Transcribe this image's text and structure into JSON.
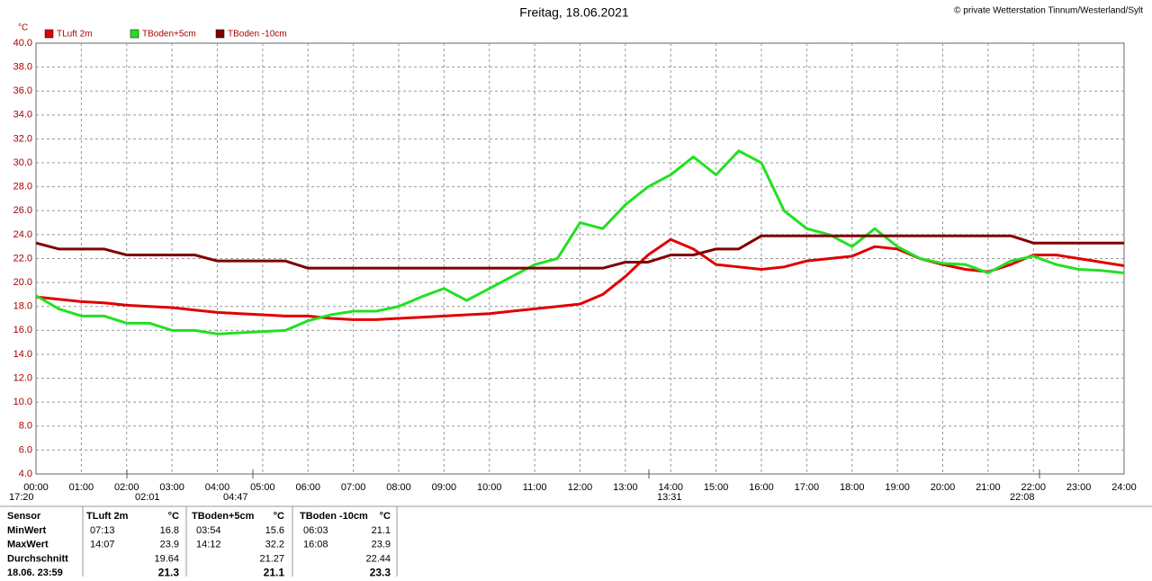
{
  "chart_data": {
    "type": "line",
    "title": "Freitag, 18.06.2021",
    "credit": "© private Wetterstation Tinnum/Westerland/Sylt",
    "y_label": "°C",
    "x": [
      0,
      0.5,
      1,
      1.5,
      2,
      2.5,
      3,
      3.5,
      4,
      4.5,
      5,
      5.5,
      6,
      6.5,
      7,
      7.5,
      8,
      8.5,
      9,
      9.5,
      10,
      10.5,
      11,
      11.5,
      12,
      12.5,
      13,
      13.5,
      14,
      14.5,
      15,
      15.5,
      16,
      16.5,
      17,
      17.5,
      18,
      18.5,
      19,
      19.5,
      20,
      20.5,
      21,
      21.5,
      22,
      22.5,
      23,
      23.5,
      24
    ],
    "series": [
      {
        "name": "TLuft 2m",
        "color": "#e00000",
        "values": [
          18.8,
          18.6,
          18.4,
          18.3,
          18.1,
          18.0,
          17.9,
          17.7,
          17.5,
          17.4,
          17.3,
          17.2,
          17.2,
          17.0,
          16.9,
          16.9,
          17.0,
          17.1,
          17.2,
          17.3,
          17.4,
          17.6,
          17.8,
          18.0,
          18.2,
          19.0,
          20.5,
          22.3,
          23.6,
          22.8,
          21.5,
          21.3,
          21.1,
          21.3,
          21.8,
          22.0,
          22.2,
          23.0,
          22.8,
          22.0,
          21.5,
          21.1,
          20.9,
          21.5,
          22.3,
          22.3,
          22.0,
          21.7,
          21.4
        ]
      },
      {
        "name": "TBoden+5cm",
        "color": "#22e022",
        "values": [
          18.9,
          17.8,
          17.2,
          17.2,
          16.6,
          16.6,
          16.0,
          16.0,
          15.7,
          15.8,
          15.9,
          16.0,
          16.8,
          17.3,
          17.6,
          17.6,
          18.0,
          18.8,
          19.5,
          18.5,
          19.5,
          20.5,
          21.5,
          22.0,
          25.0,
          24.5,
          26.5,
          28.0,
          29.0,
          30.5,
          29.0,
          31.0,
          30.0,
          26.0,
          24.5,
          24.0,
          23.0,
          24.5,
          23.0,
          22.0,
          21.6,
          21.5,
          20.8,
          21.8,
          22.2,
          21.5,
          21.1,
          21.0,
          20.8
        ]
      },
      {
        "name": "TBoden -10cm",
        "color": "#800000",
        "values": [
          23.3,
          22.8,
          22.8,
          22.8,
          22.3,
          22.3,
          22.3,
          22.3,
          21.8,
          21.8,
          21.8,
          21.8,
          21.2,
          21.2,
          21.2,
          21.2,
          21.2,
          21.2,
          21.2,
          21.2,
          21.2,
          21.2,
          21.2,
          21.2,
          21.2,
          21.2,
          21.7,
          21.7,
          22.3,
          22.3,
          22.8,
          22.8,
          23.9,
          23.9,
          23.9,
          23.9,
          23.9,
          23.9,
          23.9,
          23.9,
          23.9,
          23.9,
          23.9,
          23.9,
          23.3,
          23.3,
          23.3,
          23.3,
          23.3
        ]
      }
    ],
    "xlim": [
      0,
      24
    ],
    "xticks": [
      {
        "value": 0,
        "label": "00:00"
      },
      {
        "value": 1,
        "label": "01:00"
      },
      {
        "value": 2,
        "label": "02:00"
      },
      {
        "value": 3,
        "label": "03:00"
      },
      {
        "value": 4,
        "label": "04:00"
      },
      {
        "value": 5,
        "label": "05:00"
      },
      {
        "value": 6,
        "label": "06:00"
      },
      {
        "value": 7,
        "label": "07:00"
      },
      {
        "value": 8,
        "label": "08:00"
      },
      {
        "value": 9,
        "label": "09:00"
      },
      {
        "value": 10,
        "label": "10:00"
      },
      {
        "value": 11,
        "label": "11:00"
      },
      {
        "value": 12,
        "label": "12:00"
      },
      {
        "value": 13,
        "label": "13:00"
      },
      {
        "value": 14,
        "label": "14:00"
      },
      {
        "value": 15,
        "label": "15:00"
      },
      {
        "value": 16,
        "label": "16:00"
      },
      {
        "value": 17,
        "label": "17:00"
      },
      {
        "value": 18,
        "label": "18:00"
      },
      {
        "value": 19,
        "label": "19:00"
      },
      {
        "value": 20,
        "label": "20:00"
      },
      {
        "value": 21,
        "label": "21:00"
      },
      {
        "value": 22,
        "label": "22:00"
      },
      {
        "value": 23,
        "label": "23:00"
      },
      {
        "value": 24,
        "label": "24:00"
      }
    ],
    "ylim": [
      4,
      40
    ],
    "yticks": [
      {
        "value": 4,
        "label": "4.0"
      },
      {
        "value": 6,
        "label": "6.0"
      },
      {
        "value": 8,
        "label": "8.0"
      },
      {
        "value": 10,
        "label": "10.0"
      },
      {
        "value": 12,
        "label": "12.0"
      },
      {
        "value": 14,
        "label": "14.0"
      },
      {
        "value": 16,
        "label": "16.0"
      },
      {
        "value": 18,
        "label": "18.0"
      },
      {
        "value": 20,
        "label": "20.0"
      },
      {
        "value": 22,
        "label": "22.0"
      },
      {
        "value": 24,
        "label": "24.0"
      },
      {
        "value": 26,
        "label": "26.0"
      },
      {
        "value": 28,
        "label": "28.0"
      },
      {
        "value": 30,
        "label": "30.0"
      },
      {
        "value": 32,
        "label": "32.0"
      },
      {
        "value": 34,
        "label": "34.0"
      },
      {
        "value": 36,
        "label": "36.0"
      },
      {
        "value": 38,
        "label": "38.0"
      },
      {
        "value": 40,
        "label": "40.0"
      }
    ],
    "grid": true,
    "annotations": [
      "17:20",
      "02:01",
      "04:47",
      "13:31",
      "22:08"
    ]
  },
  "table": {
    "header": [
      "Sensor",
      "TLuft 2m",
      "°C",
      "TBoden+5cm",
      "°C",
      "TBoden -10cm",
      "°C"
    ],
    "rows": [
      {
        "label": "MinWert",
        "cells": [
          [
            "07:13",
            "16.8"
          ],
          [
            "03:54",
            "15.6"
          ],
          [
            "06:03",
            "21.1"
          ]
        ]
      },
      {
        "label": "MaxWert",
        "cells": [
          [
            "14:07",
            "23.9"
          ],
          [
            "14:12",
            "32.2"
          ],
          [
            "16:08",
            "23.9"
          ]
        ]
      },
      {
        "label": "Durchschnitt",
        "cells": [
          [
            "19.64"
          ],
          [
            "21.27"
          ],
          [
            "22.44"
          ]
        ]
      },
      {
        "label": "18.06. 23:59",
        "cells": [
          [
            "21.3"
          ],
          [
            "21.1"
          ],
          [
            "23.3"
          ]
        ]
      }
    ]
  }
}
